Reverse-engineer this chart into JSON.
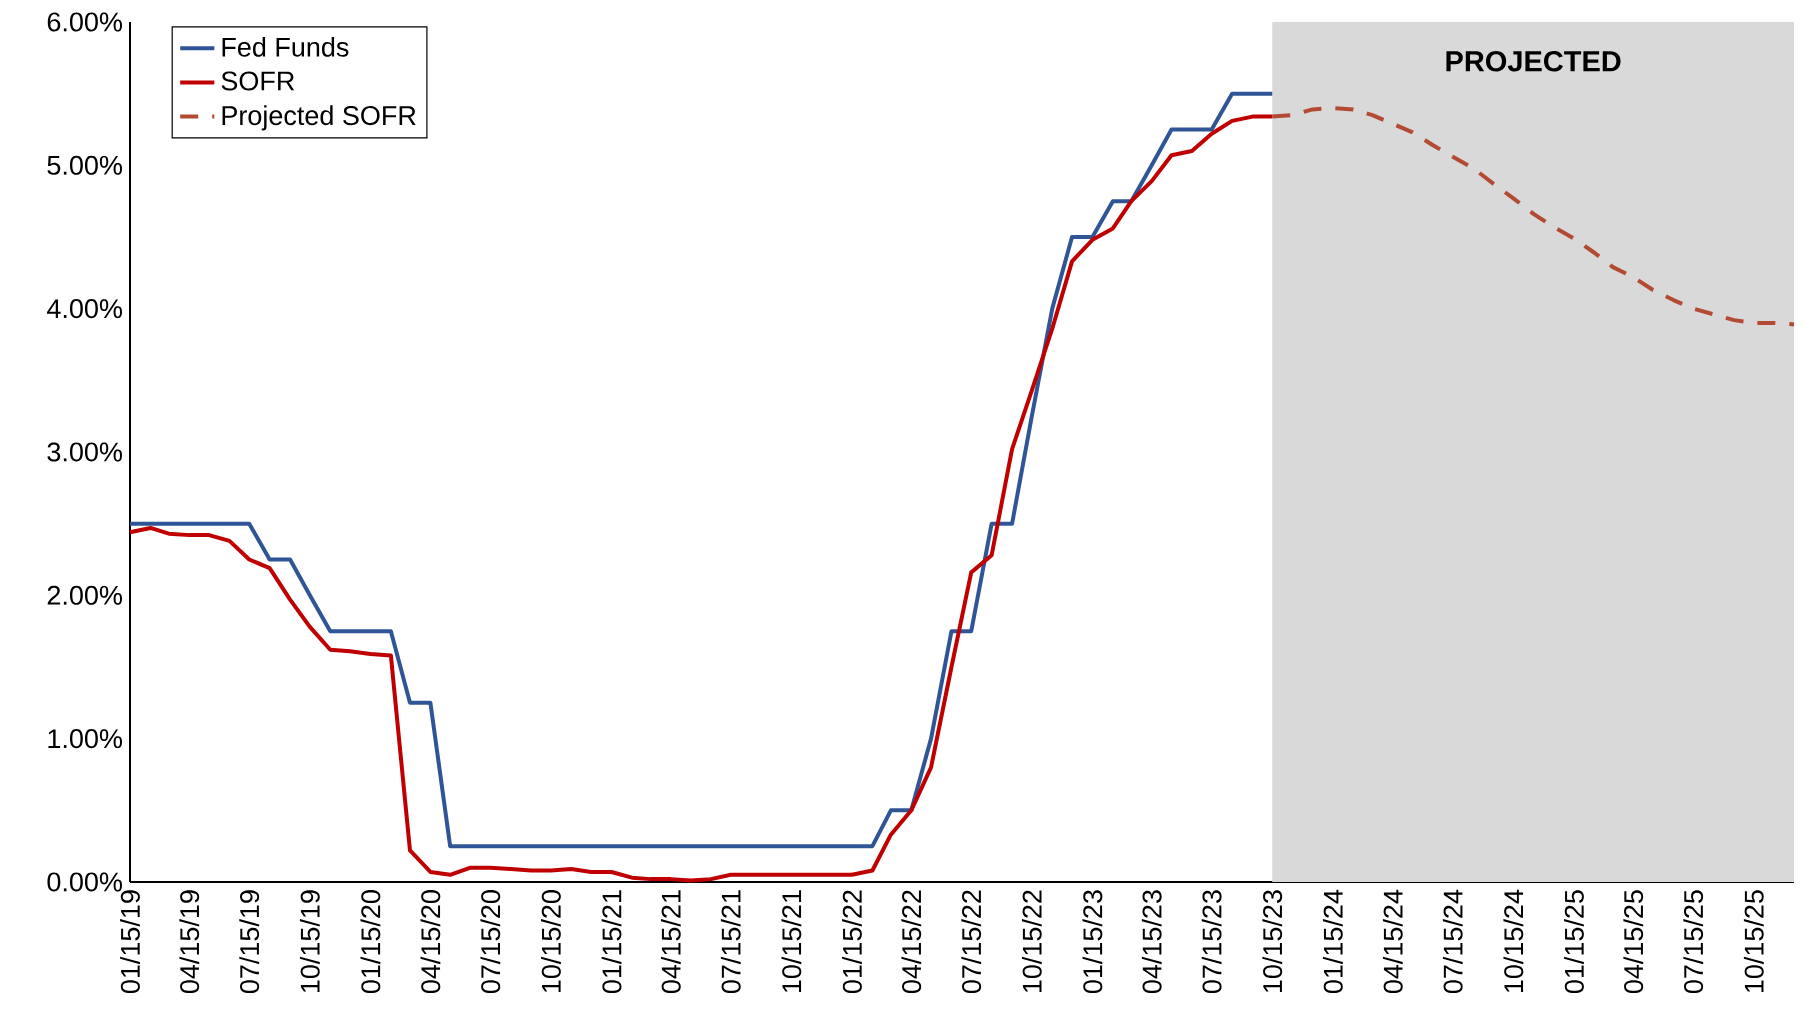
{
  "chart_data": {
    "type": "line",
    "x": [
      "2019-01-15",
      "2019-02-15",
      "2019-03-15",
      "2019-04-15",
      "2019-05-15",
      "2019-06-15",
      "2019-07-15",
      "2019-08-15",
      "2019-09-15",
      "2019-10-15",
      "2019-11-15",
      "2019-12-15",
      "2020-01-15",
      "2020-02-15",
      "2020-03-15",
      "2020-04-15",
      "2020-05-15",
      "2020-06-15",
      "2020-07-15",
      "2020-08-15",
      "2020-09-15",
      "2020-10-15",
      "2020-11-15",
      "2020-12-15",
      "2021-01-15",
      "2021-02-15",
      "2021-03-15",
      "2021-04-15",
      "2021-05-15",
      "2021-06-15",
      "2021-07-15",
      "2021-08-15",
      "2021-09-15",
      "2021-10-15",
      "2021-11-15",
      "2021-12-15",
      "2022-01-15",
      "2022-02-15",
      "2022-03-15",
      "2022-04-15",
      "2022-05-15",
      "2022-06-15",
      "2022-07-15",
      "2022-08-15",
      "2022-09-15",
      "2022-10-15",
      "2022-11-15",
      "2022-12-15",
      "2023-01-15",
      "2023-02-15",
      "2023-03-15",
      "2023-04-15",
      "2023-05-15",
      "2023-06-15",
      "2023-07-15",
      "2023-08-15",
      "2023-09-15",
      "2023-10-15"
    ],
    "series": [
      {
        "name": "Fed Funds",
        "color": "#2f5597",
        "values": [
          2.5,
          2.5,
          2.5,
          2.5,
          2.5,
          2.5,
          2.5,
          2.25,
          2.25,
          2.0,
          1.75,
          1.75,
          1.75,
          1.75,
          1.25,
          1.25,
          0.25,
          0.25,
          0.25,
          0.25,
          0.25,
          0.25,
          0.25,
          0.25,
          0.25,
          0.25,
          0.25,
          0.25,
          0.25,
          0.25,
          0.25,
          0.25,
          0.25,
          0.25,
          0.25,
          0.25,
          0.25,
          0.25,
          0.5,
          0.5,
          1.0,
          1.75,
          1.75,
          2.5,
          2.5,
          3.25,
          4.0,
          4.5,
          4.5,
          4.75,
          4.75,
          5.0,
          5.25,
          5.25,
          5.25,
          5.5,
          5.5,
          5.5
        ]
      },
      {
        "name": "SOFR",
        "color": "#c00000",
        "values": [
          2.44,
          2.47,
          2.43,
          2.42,
          2.42,
          2.38,
          2.25,
          2.19,
          1.97,
          1.78,
          1.62,
          1.61,
          1.59,
          1.58,
          0.22,
          0.07,
          0.05,
          0.1,
          0.1,
          0.09,
          0.08,
          0.08,
          0.09,
          0.07,
          0.07,
          0.03,
          0.02,
          0.02,
          0.01,
          0.02,
          0.05,
          0.05,
          0.05,
          0.05,
          0.05,
          0.05,
          0.05,
          0.08,
          0.33,
          0.5,
          0.8,
          1.5,
          2.16,
          2.28,
          3.02,
          3.43,
          3.86,
          4.33,
          4.48,
          4.56,
          4.75,
          4.89,
          5.07,
          5.1,
          5.22,
          5.31,
          5.34,
          5.34
        ]
      },
      {
        "name": "Projected SOFR",
        "color": "#b34a33",
        "line_style": "dashed",
        "x": [
          "2023-10-15",
          "2023-11-15",
          "2023-12-15",
          "2024-01-15",
          "2024-02-15",
          "2024-03-15",
          "2024-04-15",
          "2024-05-15",
          "2024-06-15",
          "2024-07-15",
          "2024-08-15",
          "2024-09-15",
          "2024-10-15",
          "2024-11-15",
          "2024-12-15",
          "2025-01-15",
          "2025-02-15",
          "2025-03-15",
          "2025-04-15",
          "2025-05-15",
          "2025-06-15",
          "2025-07-15",
          "2025-08-15",
          "2025-09-15",
          "2025-10-15",
          "2025-11-15",
          "2025-12-15"
        ],
        "values": [
          5.34,
          5.35,
          5.39,
          5.4,
          5.39,
          5.35,
          5.29,
          5.23,
          5.14,
          5.06,
          4.98,
          4.87,
          4.77,
          4.66,
          4.57,
          4.49,
          4.39,
          4.29,
          4.22,
          4.13,
          4.06,
          4.0,
          3.96,
          3.92,
          3.9,
          3.9,
          3.89
        ]
      }
    ],
    "xlim": [
      "2019-01-15",
      "2025-12-15"
    ],
    "xticks": [
      {
        "value": "2019-01-15",
        "label": "01/15/19"
      },
      {
        "value": "2019-04-15",
        "label": "04/15/19"
      },
      {
        "value": "2019-07-15",
        "label": "07/15/19"
      },
      {
        "value": "2019-10-15",
        "label": "10/15/19"
      },
      {
        "value": "2020-01-15",
        "label": "01/15/20"
      },
      {
        "value": "2020-04-15",
        "label": "04/15/20"
      },
      {
        "value": "2020-07-15",
        "label": "07/15/20"
      },
      {
        "value": "2020-10-15",
        "label": "10/15/20"
      },
      {
        "value": "2021-01-15",
        "label": "01/15/21"
      },
      {
        "value": "2021-04-15",
        "label": "04/15/21"
      },
      {
        "value": "2021-07-15",
        "label": "07/15/21"
      },
      {
        "value": "2021-10-15",
        "label": "10/15/21"
      },
      {
        "value": "2022-01-15",
        "label": "01/15/22"
      },
      {
        "value": "2022-04-15",
        "label": "04/15/22"
      },
      {
        "value": "2022-07-15",
        "label": "07/15/22"
      },
      {
        "value": "2022-10-15",
        "label": "10/15/22"
      },
      {
        "value": "2023-01-15",
        "label": "01/15/23"
      },
      {
        "value": "2023-04-15",
        "label": "04/15/23"
      },
      {
        "value": "2023-07-15",
        "label": "07/15/23"
      },
      {
        "value": "2023-10-15",
        "label": "10/15/23"
      },
      {
        "value": "2024-01-15",
        "label": "01/15/24"
      },
      {
        "value": "2024-04-15",
        "label": "04/15/24"
      },
      {
        "value": "2024-07-15",
        "label": "07/15/24"
      },
      {
        "value": "2024-10-15",
        "label": "10/15/24"
      },
      {
        "value": "2025-01-15",
        "label": "01/15/25"
      },
      {
        "value": "2025-04-15",
        "label": "04/15/25"
      },
      {
        "value": "2025-07-15",
        "label": "07/15/25"
      },
      {
        "value": "2025-10-15",
        "label": "10/15/25"
      }
    ],
    "ylim": [
      0,
      6
    ],
    "yticks": [
      {
        "value": 0,
        "label": "0.00%"
      },
      {
        "value": 1,
        "label": "1.00%"
      },
      {
        "value": 2,
        "label": "2.00%"
      },
      {
        "value": 3,
        "label": "3.00%"
      },
      {
        "value": 4,
        "label": "4.00%"
      },
      {
        "value": 5,
        "label": "5.00%"
      },
      {
        "value": 6,
        "label": "6.00%"
      }
    ],
    "bands": [
      {
        "axis": "x",
        "from": "2023-10-15",
        "to": "2025-12-15",
        "label": "PROJECTED",
        "color": "#d9d9d9"
      }
    ],
    "legend": "top left"
  }
}
